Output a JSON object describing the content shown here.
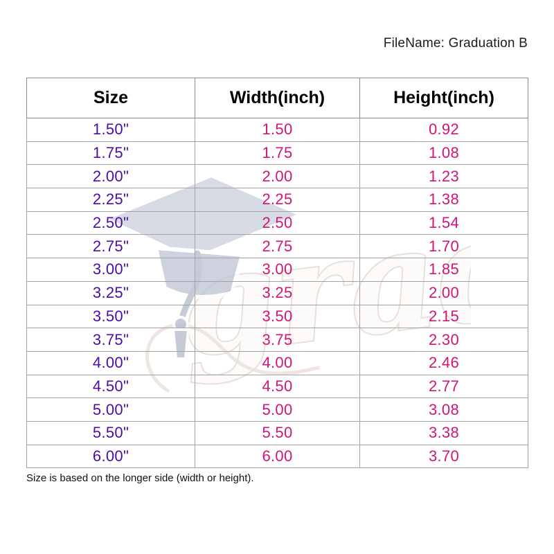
{
  "header": {
    "filename_label": "FileName: Graduation B"
  },
  "chart_data": {
    "type": "table",
    "title": "FileName: Graduation B",
    "columns": [
      "Size",
      "Width(inch)",
      "Height(inch)"
    ],
    "rows": [
      [
        "1.50\"",
        "1.50",
        "0.92"
      ],
      [
        "1.75\"",
        "1.75",
        "1.08"
      ],
      [
        "2.00\"",
        "2.00",
        "1.23"
      ],
      [
        "2.25\"",
        "2.25",
        "1.38"
      ],
      [
        "2.50\"",
        "2.50",
        "1.54"
      ],
      [
        "2.75\"",
        "2.75",
        "1.70"
      ],
      [
        "3.00\"",
        "3.00",
        "1.85"
      ],
      [
        "3.25\"",
        "3.25",
        "2.00"
      ],
      [
        "3.50\"",
        "3.50",
        "2.15"
      ],
      [
        "3.75\"",
        "3.75",
        "2.30"
      ],
      [
        "4.00\"",
        "4.00",
        "2.46"
      ],
      [
        "4.50\"",
        "4.50",
        "2.77"
      ],
      [
        "5.00\"",
        "5.00",
        "3.08"
      ],
      [
        "5.50\"",
        "5.50",
        "3.38"
      ],
      [
        "6.00\"",
        "6.00",
        "3.70"
      ]
    ],
    "note": "Size is based on the longer side (width or height)."
  },
  "footer": {
    "note": "Size is based on the longer side (width or height)."
  },
  "watermark": {
    "text": "grad",
    "cap_color": "#c9cfdc",
    "script_outline_color": "#d8c1b9"
  },
  "colors": {
    "size_text": "#4B0CA6",
    "value_text": "#D11577",
    "header_text": "#000000",
    "grid_line": "#a3a3a3",
    "outer_border": "#6e6e6e"
  }
}
